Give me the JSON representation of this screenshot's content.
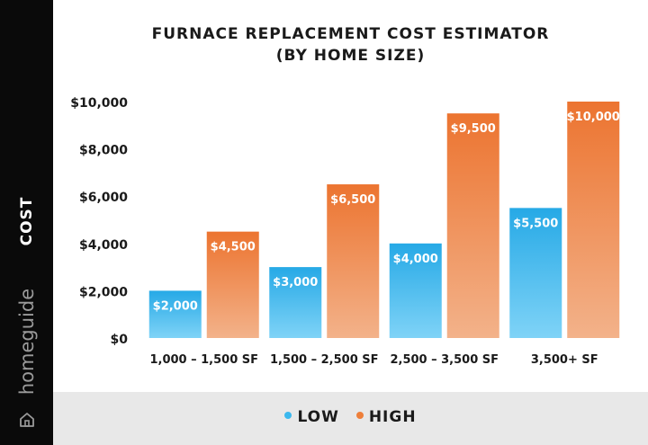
{
  "sidebar": {
    "axis_label": "COST",
    "brand": "homeguide",
    "brand_icon": "house-icon"
  },
  "colors": {
    "low": "#3bb8ee",
    "high": "#ee7f3a",
    "sidebar": "#0a0a0a",
    "legend_bg": "#e8e8e8"
  },
  "chart_data": {
    "type": "bar",
    "title": "FURNACE REPLACEMENT COST ESTIMATOR",
    "subtitle": "(BY HOME SIZE)",
    "ylabel": "COST",
    "xlabel": "",
    "categories": [
      "1,000 – 1,500 SF",
      "1,500 – 2,500 SF",
      "2,500 – 3,500 SF",
      "3,500+ SF"
    ],
    "series": [
      {
        "name": "LOW",
        "values": [
          2000,
          3000,
          4000,
          5500
        ],
        "labels": [
          "$2,000",
          "$3,000",
          "$4,000",
          "$5,500"
        ]
      },
      {
        "name": "HIGH",
        "values": [
          4500,
          6500,
          9500,
          10000
        ],
        "labels": [
          "$4,500",
          "$6,500",
          "$9,500",
          "$10,000"
        ]
      }
    ],
    "yticks": [
      0,
      2000,
      4000,
      6000,
      8000,
      10000
    ],
    "ytick_labels": [
      "$0",
      "$2,000",
      "$4,000",
      "$6,000",
      "$8,000",
      "$10,000"
    ],
    "ylim": [
      0,
      10000
    ],
    "grid": false,
    "legend_position": "bottom"
  }
}
